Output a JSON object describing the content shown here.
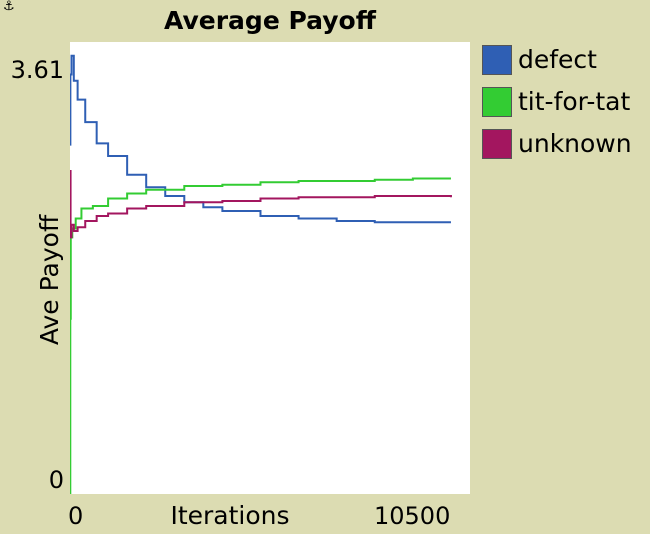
{
  "chart_data": {
    "type": "line",
    "title": "Average Payoff",
    "xlabel": "Iterations",
    "ylabel": "Ave Payoff",
    "xlim": [
      0,
      10500
    ],
    "ylim": [
      0,
      3.61
    ],
    "x_ticks": [
      "0",
      "10500"
    ],
    "y_ticks": [
      "0",
      "3.61"
    ],
    "grid": false,
    "legend_position": "right",
    "series": [
      {
        "name": "defect",
        "color": "#2f5fb4",
        "points": [
          [
            0,
            2.79
          ],
          [
            10,
            3.35
          ],
          [
            40,
            3.5
          ],
          [
            100,
            3.3
          ],
          [
            200,
            3.15
          ],
          [
            400,
            2.97
          ],
          [
            700,
            2.8
          ],
          [
            1000,
            2.7
          ],
          [
            1500,
            2.55
          ],
          [
            2000,
            2.45
          ],
          [
            2500,
            2.38
          ],
          [
            3000,
            2.33
          ],
          [
            3500,
            2.29
          ],
          [
            4000,
            2.26
          ],
          [
            5000,
            2.22
          ],
          [
            6000,
            2.2
          ],
          [
            7000,
            2.18
          ],
          [
            8000,
            2.17
          ],
          [
            9000,
            2.17
          ],
          [
            10000,
            2.17
          ]
        ]
      },
      {
        "name": "tit-for-tat",
        "color": "#33cc33",
        "points": [
          [
            0,
            0.0
          ],
          [
            8,
            1.4
          ],
          [
            20,
            2.05
          ],
          [
            60,
            2.12
          ],
          [
            150,
            2.2
          ],
          [
            300,
            2.28
          ],
          [
            600,
            2.3
          ],
          [
            1000,
            2.36
          ],
          [
            1500,
            2.4
          ],
          [
            2000,
            2.43
          ],
          [
            3000,
            2.46
          ],
          [
            4000,
            2.47
          ],
          [
            5000,
            2.49
          ],
          [
            6000,
            2.5
          ],
          [
            7000,
            2.5
          ],
          [
            8000,
            2.51
          ],
          [
            9000,
            2.52
          ],
          [
            10000,
            2.52
          ]
        ]
      },
      {
        "name": "unknown",
        "color": "#a3165f",
        "points": [
          [
            0,
            2.32
          ],
          [
            6,
            2.58
          ],
          [
            15,
            2.05
          ],
          [
            40,
            2.15
          ],
          [
            100,
            2.1
          ],
          [
            200,
            2.13
          ],
          [
            400,
            2.18
          ],
          [
            700,
            2.22
          ],
          [
            1000,
            2.24
          ],
          [
            1500,
            2.28
          ],
          [
            2000,
            2.3
          ],
          [
            3000,
            2.33
          ],
          [
            4000,
            2.34
          ],
          [
            5000,
            2.36
          ],
          [
            6000,
            2.37
          ],
          [
            7000,
            2.37
          ],
          [
            8000,
            2.38
          ],
          [
            9000,
            2.38
          ],
          [
            10000,
            2.37
          ]
        ]
      }
    ]
  }
}
